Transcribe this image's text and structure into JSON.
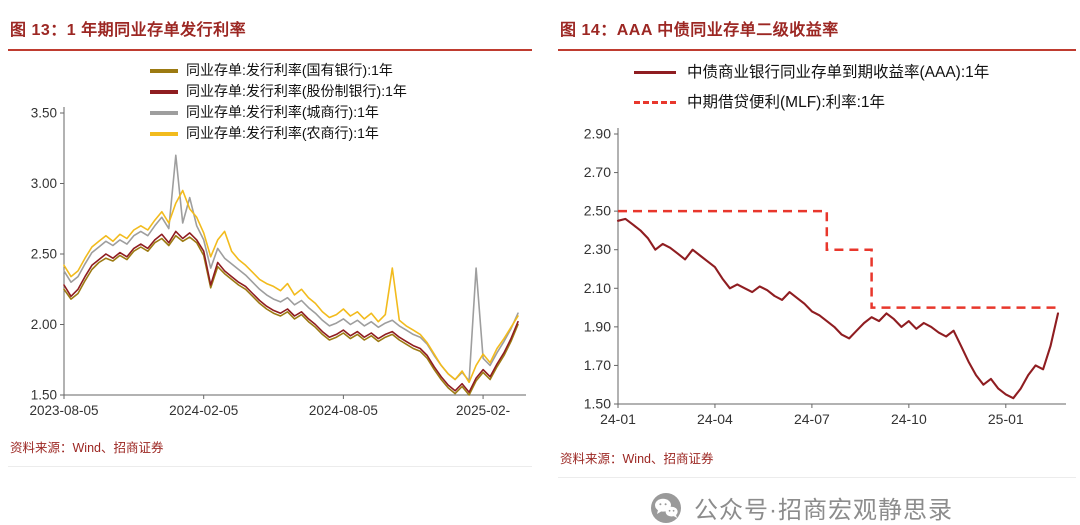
{
  "accent": {
    "title_color": "#9c2723",
    "rule_color": "#bf3b2f"
  },
  "figures": [
    {
      "title": "图 13：1 年期同业存单发行利率",
      "source": "资料来源：Wind、招商证券"
    },
    {
      "title": "图 14：AAA 中债同业存单二级收益率",
      "source": "资料来源：Wind、招商证券"
    }
  ],
  "watermark": {
    "text": "公众号·招商宏观静思录"
  },
  "chart_data": [
    {
      "id": "fig13",
      "type": "line",
      "title": "图 13：1 年期同业存单发行利率",
      "ylim": [
        1.5,
        3.5
      ],
      "yticks": [
        "1.50",
        "2.00",
        "2.50",
        "3.00",
        "3.50"
      ],
      "x_count": 66,
      "xticks": [
        {
          "i": 0,
          "label": "2023-08-05"
        },
        {
          "i": 20,
          "label": "2024-02-05"
        },
        {
          "i": 40,
          "label": "2024-08-05"
        },
        {
          "i": 60,
          "label": "2025-02-"
        }
      ],
      "legend_position": "top-center",
      "grid": false,
      "series": [
        {
          "name": "同业存单:发行利率(国有银行):1年",
          "color": "#9c7a12",
          "values": [
            2.25,
            2.18,
            2.22,
            2.31,
            2.39,
            2.44,
            2.47,
            2.45,
            2.49,
            2.46,
            2.52,
            2.55,
            2.52,
            2.58,
            2.61,
            2.56,
            2.63,
            2.59,
            2.62,
            2.58,
            2.49,
            2.26,
            2.41,
            2.36,
            2.32,
            2.28,
            2.25,
            2.2,
            2.15,
            2.11,
            2.08,
            2.06,
            2.09,
            2.04,
            2.07,
            2.02,
            1.98,
            1.93,
            1.89,
            1.91,
            1.94,
            1.9,
            1.93,
            1.89,
            1.92,
            1.88,
            1.91,
            1.93,
            1.89,
            1.86,
            1.83,
            1.81,
            1.76,
            1.68,
            1.61,
            1.55,
            1.51,
            1.56,
            1.5,
            1.6,
            1.66,
            1.61,
            1.7,
            1.78,
            1.88,
            2.0
          ]
        },
        {
          "name": "同业存单:发行利率(股份制银行):1年",
          "color": "#8f1d21",
          "values": [
            2.28,
            2.2,
            2.25,
            2.34,
            2.42,
            2.46,
            2.5,
            2.47,
            2.51,
            2.48,
            2.54,
            2.57,
            2.54,
            2.6,
            2.64,
            2.58,
            2.66,
            2.61,
            2.65,
            2.6,
            2.52,
            2.28,
            2.44,
            2.38,
            2.34,
            2.3,
            2.27,
            2.22,
            2.17,
            2.13,
            2.1,
            2.08,
            2.11,
            2.06,
            2.09,
            2.04,
            2.0,
            1.95,
            1.91,
            1.93,
            1.96,
            1.92,
            1.95,
            1.91,
            1.94,
            1.9,
            1.93,
            1.95,
            1.91,
            1.88,
            1.85,
            1.83,
            1.78,
            1.7,
            1.63,
            1.57,
            1.53,
            1.58,
            1.52,
            1.62,
            1.68,
            1.63,
            1.72,
            1.8,
            1.9,
            2.02
          ]
        },
        {
          "name": "同业存单:发行利率(城商行):1年",
          "color": "#9e9e9e",
          "values": [
            2.38,
            2.3,
            2.34,
            2.43,
            2.51,
            2.55,
            2.59,
            2.56,
            2.6,
            2.57,
            2.63,
            2.66,
            2.63,
            2.7,
            2.76,
            2.68,
            3.2,
            2.72,
            2.9,
            2.7,
            2.6,
            2.4,
            2.54,
            2.47,
            2.43,
            2.39,
            2.35,
            2.3,
            2.25,
            2.21,
            2.18,
            2.16,
            2.19,
            2.14,
            2.17,
            2.12,
            2.08,
            2.03,
            1.99,
            2.01,
            2.04,
            2.0,
            2.03,
            1.99,
            2.02,
            1.98,
            2.01,
            2.03,
            1.99,
            1.96,
            1.93,
            1.91,
            1.86,
            1.78,
            1.71,
            1.65,
            1.61,
            1.66,
            1.6,
            2.4,
            1.76,
            1.71,
            1.8,
            1.88,
            1.97,
            2.08
          ]
        },
        {
          "name": "同业存单:发行利率(农商行):1年",
          "color": "#f2bb1d",
          "values": [
            2.42,
            2.34,
            2.38,
            2.47,
            2.55,
            2.59,
            2.63,
            2.59,
            2.64,
            2.61,
            2.67,
            2.7,
            2.67,
            2.74,
            2.8,
            2.72,
            2.86,
            2.95,
            2.82,
            2.76,
            2.65,
            2.48,
            2.6,
            2.66,
            2.52,
            2.46,
            2.42,
            2.37,
            2.32,
            2.29,
            2.27,
            2.24,
            2.29,
            2.21,
            2.25,
            2.19,
            2.15,
            2.09,
            2.05,
            2.07,
            2.11,
            2.06,
            2.09,
            2.04,
            2.08,
            2.02,
            2.07,
            2.4,
            2.03,
            1.99,
            1.96,
            1.93,
            1.87,
            1.79,
            1.71,
            1.65,
            1.61,
            1.67,
            1.59,
            1.71,
            1.79,
            1.73,
            1.83,
            1.9,
            1.98,
            2.06
          ]
        }
      ]
    },
    {
      "id": "fig14",
      "type": "line",
      "title": "图 14：AAA 中债同业存单二级收益率",
      "ylim": [
        1.5,
        2.9
      ],
      "yticks": [
        "1.50",
        "1.70",
        "1.90",
        "2.10",
        "2.30",
        "2.50",
        "2.70",
        "2.90"
      ],
      "x_count": 60,
      "xticks": [
        {
          "i": 0,
          "label": "24-01"
        },
        {
          "i": 13,
          "label": "24-04"
        },
        {
          "i": 26,
          "label": "24-07"
        },
        {
          "i": 39,
          "label": "24-10"
        },
        {
          "i": 52,
          "label": "25-01"
        }
      ],
      "legend_position": "top-left",
      "grid": false,
      "series": [
        {
          "name": "中债商业银行同业存单到期收益率(AAA):1年",
          "color": "#8f1d21",
          "values": [
            2.45,
            2.46,
            2.43,
            2.4,
            2.36,
            2.3,
            2.33,
            2.31,
            2.28,
            2.25,
            2.3,
            2.27,
            2.24,
            2.21,
            2.15,
            2.1,
            2.12,
            2.1,
            2.08,
            2.11,
            2.09,
            2.06,
            2.04,
            2.08,
            2.05,
            2.02,
            1.98,
            1.96,
            1.93,
            1.9,
            1.86,
            1.84,
            1.88,
            1.92,
            1.95,
            1.93,
            1.97,
            1.94,
            1.9,
            1.93,
            1.89,
            1.92,
            1.9,
            1.87,
            1.85,
            1.88,
            1.8,
            1.72,
            1.65,
            1.6,
            1.63,
            1.58,
            1.55,
            1.53,
            1.58,
            1.65,
            1.7,
            1.68,
            1.8,
            1.97
          ]
        }
      ],
      "step_series": [
        {
          "name": "中期借贷便利(MLF):利率:1年",
          "color": "#e8372c",
          "dash": "9 6",
          "segments": [
            [
              0,
              28,
              2.5
            ],
            [
              28,
              34,
              2.3
            ],
            [
              34,
              59,
              2.0
            ]
          ]
        }
      ]
    }
  ]
}
